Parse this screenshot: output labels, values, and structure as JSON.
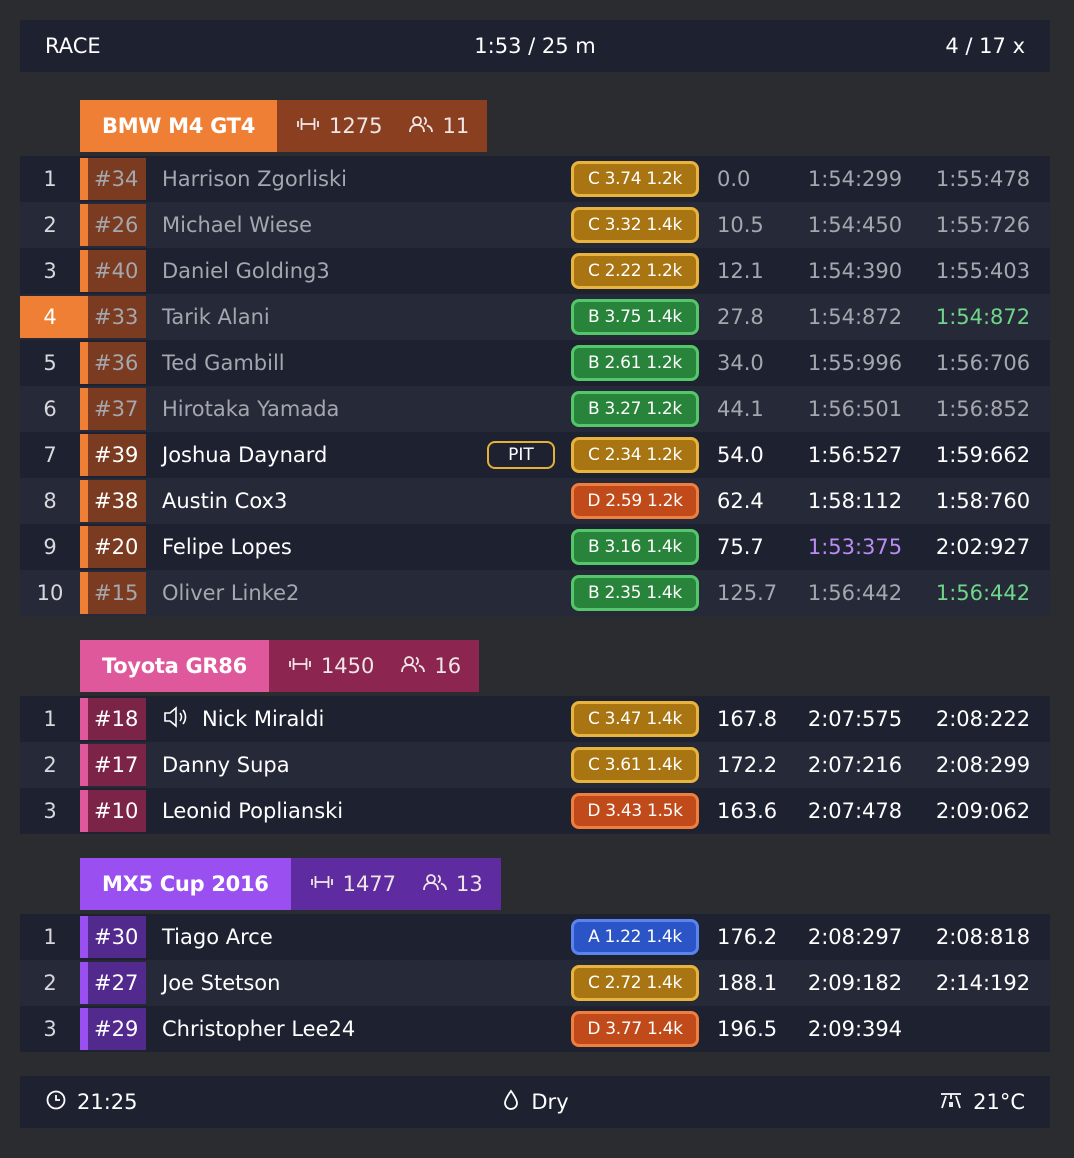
{
  "header": {
    "session": "RACE",
    "time": "1:53 / 25 m",
    "laps": "4 / 17 x"
  },
  "footer": {
    "clock": "21:25",
    "track_state": "Dry",
    "temperature": "21°C"
  },
  "icons": {
    "sof": "dumbbell-icon",
    "drivers": "users-icon",
    "speaker": "speaker-icon",
    "clock": "clock-icon",
    "drop": "drop-icon",
    "track_temp": "track-temp-icon"
  },
  "colors": {
    "player_position": "#ef7f35",
    "license_A": "#2b54c7",
    "license_B": "#28843b",
    "license_C": "#a87512",
    "license_D": "#c04a1a",
    "personal_best": "#6fd68a",
    "overall_best": "#b98cf3"
  },
  "classes": [
    {
      "name": "BMW M4 GT4",
      "sof": "1275",
      "count": "11",
      "color": "#ef7f35",
      "stats_color": "#8a3f20",
      "stripe_color": "#ef7f35",
      "num_bg": "#7a3b20",
      "rows": [
        {
          "pos": "1",
          "num": "#34",
          "driver": "Harrison Zgorliski",
          "pit": "",
          "speaker": false,
          "license": "C",
          "license_text": "C 3.74 1.2k",
          "gap": "0.0",
          "best": "1:54:299",
          "last": "1:55:478",
          "dim": true,
          "best_style": "",
          "last_style": ""
        },
        {
          "pos": "2",
          "num": "#26",
          "driver": "Michael Wiese",
          "pit": "",
          "speaker": false,
          "license": "C",
          "license_text": "C 3.32 1.4k",
          "gap": "10.5",
          "best": "1:54:450",
          "last": "1:55:726",
          "dim": true,
          "best_style": "",
          "last_style": ""
        },
        {
          "pos": "3",
          "num": "#40",
          "driver": "Daniel Golding3",
          "pit": "",
          "speaker": false,
          "license": "C",
          "license_text": "C 2.22 1.2k",
          "gap": "12.1",
          "best": "1:54:390",
          "last": "1:55:403",
          "dim": true,
          "best_style": "",
          "last_style": ""
        },
        {
          "pos": "4",
          "num": "#33",
          "driver": "Tarik Alani",
          "pit": "",
          "speaker": false,
          "license": "B",
          "license_text": "B 3.75 1.4k",
          "gap": "27.8",
          "best": "1:54:872",
          "last": "1:54:872",
          "dim": true,
          "player": true,
          "best_style": "",
          "last_style": "green"
        },
        {
          "pos": "5",
          "num": "#36",
          "driver": "Ted Gambill",
          "pit": "",
          "speaker": false,
          "license": "B",
          "license_text": "B 2.61 1.2k",
          "gap": "34.0",
          "best": "1:55:996",
          "last": "1:56:706",
          "dim": true,
          "best_style": "",
          "last_style": ""
        },
        {
          "pos": "6",
          "num": "#37",
          "driver": "Hirotaka Yamada",
          "pit": "",
          "speaker": false,
          "license": "B",
          "license_text": "B 3.27 1.2k",
          "gap": "44.1",
          "best": "1:56:501",
          "last": "1:56:852",
          "dim": true,
          "best_style": "",
          "last_style": ""
        },
        {
          "pos": "7",
          "num": "#39",
          "driver": "Joshua Daynard",
          "pit": "PIT",
          "speaker": false,
          "license": "C",
          "license_text": "C 2.34 1.2k",
          "gap": "54.0",
          "best": "1:56:527",
          "last": "1:59:662",
          "dim": false,
          "best_style": "",
          "last_style": ""
        },
        {
          "pos": "8",
          "num": "#38",
          "driver": "Austin Cox3",
          "pit": "",
          "speaker": false,
          "license": "D",
          "license_text": "D 2.59 1.2k",
          "gap": "62.4",
          "best": "1:58:112",
          "last": "1:58:760",
          "dim": false,
          "best_style": "",
          "last_style": ""
        },
        {
          "pos": "9",
          "num": "#20",
          "driver": "Felipe Lopes",
          "pit": "",
          "speaker": false,
          "license": "B",
          "license_text": "B 3.16 1.4k",
          "gap": "75.7",
          "best": "1:53:375",
          "last": "2:02:927",
          "dim": false,
          "best_style": "purple",
          "last_style": ""
        },
        {
          "pos": "10",
          "num": "#15",
          "driver": "Oliver Linke2",
          "pit": "",
          "speaker": false,
          "license": "B",
          "license_text": "B 2.35 1.4k",
          "gap": "125.7",
          "best": "1:56:442",
          "last": "1:56:442",
          "dim": true,
          "best_style": "",
          "last_style": "green"
        }
      ]
    },
    {
      "name": "Toyota GR86",
      "sof": "1450",
      "count": "16",
      "color": "#e0589c",
      "stats_color": "#8c2550",
      "stripe_color": "#e0589c",
      "num_bg": "#7c2448",
      "rows": [
        {
          "pos": "1",
          "num": "#18",
          "driver": "Nick Miraldi",
          "pit": "",
          "speaker": true,
          "license": "C",
          "license_text": "C 3.47 1.4k",
          "gap": "167.8",
          "best": "2:07:575",
          "last": "2:08:222",
          "dim": false,
          "best_style": "",
          "last_style": ""
        },
        {
          "pos": "2",
          "num": "#17",
          "driver": "Danny Supa",
          "pit": "",
          "speaker": false,
          "license": "C",
          "license_text": "C 3.61 1.4k",
          "gap": "172.2",
          "best": "2:07:216",
          "last": "2:08:299",
          "dim": false,
          "best_style": "",
          "last_style": ""
        },
        {
          "pos": "3",
          "num": "#10",
          "driver": "Leonid Poplianski",
          "pit": "",
          "speaker": false,
          "license": "D",
          "license_text": "D 3.43 1.5k",
          "gap": "163.6",
          "best": "2:07:478",
          "last": "2:09:062",
          "dim": false,
          "best_style": "",
          "last_style": ""
        }
      ]
    },
    {
      "name": "MX5 Cup 2016",
      "sof": "1477",
      "count": "13",
      "color": "#9a4ff0",
      "stats_color": "#5e2ba0",
      "stripe_color": "#9a4ff0",
      "num_bg": "#52298c",
      "rows": [
        {
          "pos": "1",
          "num": "#30",
          "driver": "Tiago Arce",
          "pit": "",
          "speaker": false,
          "license": "A",
          "license_text": "A 1.22 1.4k",
          "gap": "176.2",
          "best": "2:08:297",
          "last": "2:08:818",
          "dim": false,
          "best_style": "",
          "last_style": ""
        },
        {
          "pos": "2",
          "num": "#27",
          "driver": "Joe Stetson",
          "pit": "",
          "speaker": false,
          "license": "C",
          "license_text": "C 2.72 1.4k",
          "gap": "188.1",
          "best": "2:09:182",
          "last": "2:14:192",
          "dim": false,
          "best_style": "",
          "last_style": ""
        },
        {
          "pos": "3",
          "num": "#29",
          "driver": "Christopher Lee24",
          "pit": "",
          "speaker": false,
          "license": "D",
          "license_text": "D 3.77 1.4k",
          "gap": "196.5",
          "best": "2:09:394",
          "last": "",
          "dim": false,
          "best_style": "",
          "last_style": ""
        }
      ]
    }
  ]
}
